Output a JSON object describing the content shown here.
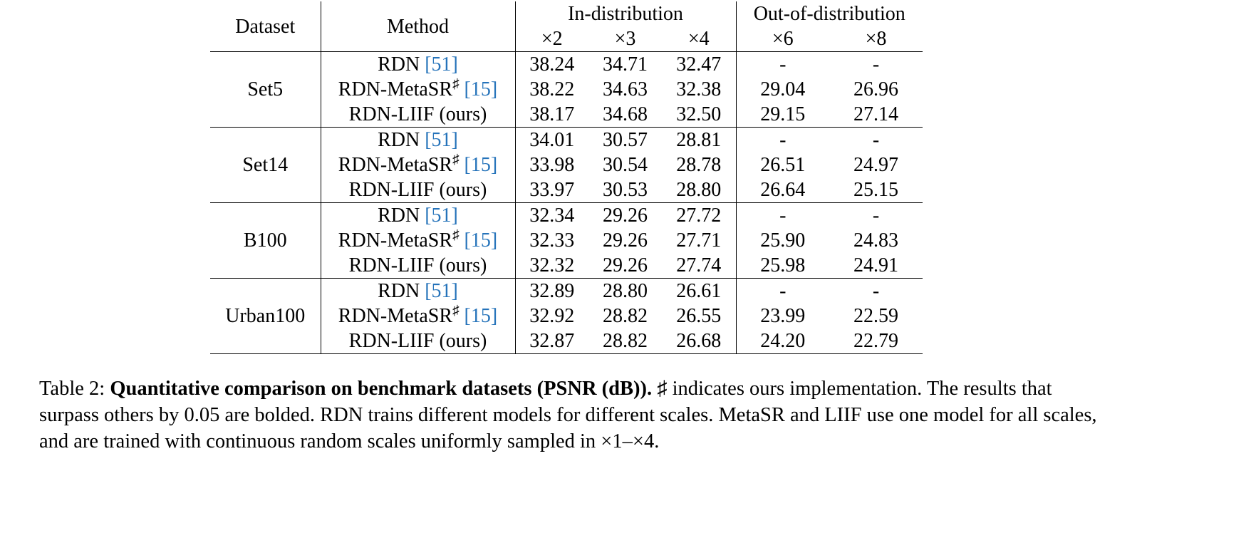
{
  "colors": {
    "citation_blue": "#2573ba",
    "text": "#000000",
    "background": "#ffffff"
  },
  "table": {
    "headers": {
      "dataset": "Dataset",
      "method": "Method",
      "in_distribution": "In-distribution",
      "out_of_distribution": "Out-of-distribution",
      "scales": [
        "×2",
        "×3",
        "×4",
        "×6",
        "×8"
      ]
    },
    "groups": [
      {
        "dataset": "Set5",
        "rows": [
          {
            "method": {
              "name": "RDN",
              "sup": "",
              "cite": "[51]"
            },
            "values": [
              "38.24",
              "34.71",
              "32.47",
              "-",
              "-"
            ],
            "bold": [
              false,
              false,
              false,
              false,
              false
            ]
          },
          {
            "method": {
              "name": "RDN-MetaSR",
              "sup": "♯",
              "cite": "[15]"
            },
            "values": [
              "38.22",
              "34.63",
              "32.38",
              "29.04",
              "26.96"
            ],
            "bold": [
              false,
              false,
              false,
              false,
              false
            ]
          },
          {
            "method": {
              "name": "RDN-LIIF (ours)",
              "sup": "",
              "cite": ""
            },
            "values": [
              "38.17",
              "34.68",
              "32.50",
              "29.15",
              "27.14"
            ],
            "bold": [
              false,
              false,
              false,
              true,
              true
            ]
          }
        ]
      },
      {
        "dataset": "Set14",
        "rows": [
          {
            "method": {
              "name": "RDN",
              "sup": "",
              "cite": "[51]"
            },
            "values": [
              "34.01",
              "30.57",
              "28.81",
              "-",
              "-"
            ],
            "bold": [
              false,
              false,
              false,
              false,
              false
            ]
          },
          {
            "method": {
              "name": "RDN-MetaSR",
              "sup": "♯",
              "cite": "[15]"
            },
            "values": [
              "33.98",
              "30.54",
              "28.78",
              "26.51",
              "24.97"
            ],
            "bold": [
              false,
              false,
              false,
              false,
              false
            ]
          },
          {
            "method": {
              "name": "RDN-LIIF (ours)",
              "sup": "",
              "cite": ""
            },
            "values": [
              "33.97",
              "30.53",
              "28.80",
              "26.64",
              "25.15"
            ],
            "bold": [
              false,
              false,
              false,
              true,
              true
            ]
          }
        ]
      },
      {
        "dataset": "B100",
        "rows": [
          {
            "method": {
              "name": "RDN",
              "sup": "",
              "cite": "[51]"
            },
            "values": [
              "32.34",
              "29.26",
              "27.72",
              "-",
              "-"
            ],
            "bold": [
              false,
              false,
              false,
              false,
              false
            ]
          },
          {
            "method": {
              "name": "RDN-MetaSR",
              "sup": "♯",
              "cite": "[15]"
            },
            "values": [
              "32.33",
              "29.26",
              "27.71",
              "25.90",
              "24.83"
            ],
            "bold": [
              false,
              false,
              false,
              false,
              false
            ]
          },
          {
            "method": {
              "name": "RDN-LIIF (ours)",
              "sup": "",
              "cite": ""
            },
            "values": [
              "32.32",
              "29.26",
              "27.74",
              "25.98",
              "24.91"
            ],
            "bold": [
              false,
              false,
              false,
              true,
              true
            ]
          }
        ]
      },
      {
        "dataset": "Urban100",
        "rows": [
          {
            "method": {
              "name": "RDN",
              "sup": "",
              "cite": "[51]"
            },
            "values": [
              "32.89",
              "28.80",
              "26.61",
              "-",
              "-"
            ],
            "bold": [
              false,
              false,
              false,
              false,
              false
            ]
          },
          {
            "method": {
              "name": "RDN-MetaSR",
              "sup": "♯",
              "cite": "[15]"
            },
            "values": [
              "32.92",
              "28.82",
              "26.55",
              "23.99",
              "22.59"
            ],
            "bold": [
              false,
              false,
              false,
              false,
              false
            ]
          },
          {
            "method": {
              "name": "RDN-LIIF (ours)",
              "sup": "",
              "cite": ""
            },
            "values": [
              "32.87",
              "28.82",
              "26.68",
              "24.20",
              "22.79"
            ],
            "bold": [
              false,
              false,
              true,
              true,
              true
            ]
          }
        ]
      }
    ]
  },
  "caption": {
    "label": "Table 2: ",
    "bold": "Quantitative comparison on benchmark datasets (PSNR (dB)).",
    "rest": " ♯ indicates ours implementation. The results that surpass others by 0.05 are bolded. RDN trains different models for different scales. MetaSR and LIIF use one model for all scales, and are trained with continuous random scales uniformly sampled in ×1–×4."
  },
  "chart_data": {
    "type": "table",
    "title": "Table 2: Quantitative comparison on benchmark datasets (PSNR (dB))",
    "columns": [
      "Dataset",
      "Method",
      "×2",
      "×3",
      "×4",
      "×6",
      "×8"
    ],
    "column_groups": {
      "In-distribution": [
        "×2",
        "×3",
        "×4"
      ],
      "Out-of-distribution": [
        "×6",
        "×8"
      ]
    },
    "rows": [
      [
        "Set5",
        "RDN [51]",
        38.24,
        34.71,
        32.47,
        "-",
        "-"
      ],
      [
        "Set5",
        "RDN-MetaSR♯ [15]",
        38.22,
        34.63,
        32.38,
        29.04,
        26.96
      ],
      [
        "Set5",
        "RDN-LIIF (ours)",
        38.17,
        34.68,
        32.5,
        29.15,
        27.14
      ],
      [
        "Set14",
        "RDN [51]",
        34.01,
        30.57,
        28.81,
        "-",
        "-"
      ],
      [
        "Set14",
        "RDN-MetaSR♯ [15]",
        33.98,
        30.54,
        28.78,
        26.51,
        24.97
      ],
      [
        "Set14",
        "RDN-LIIF (ours)",
        33.97,
        30.53,
        28.8,
        26.64,
        25.15
      ],
      [
        "B100",
        "RDN [51]",
        32.34,
        29.26,
        27.72,
        "-",
        "-"
      ],
      [
        "B100",
        "RDN-MetaSR♯ [15]",
        32.33,
        29.26,
        27.71,
        25.9,
        24.83
      ],
      [
        "B100",
        "RDN-LIIF (ours)",
        32.32,
        29.26,
        27.74,
        25.98,
        24.91
      ],
      [
        "Urban100",
        "RDN [51]",
        32.89,
        28.8,
        26.61,
        "-",
        "-"
      ],
      [
        "Urban100",
        "RDN-MetaSR♯ [15]",
        32.92,
        28.82,
        26.55,
        23.99,
        22.59
      ],
      [
        "Urban100",
        "RDN-LIIF (ours)",
        32.87,
        28.82,
        26.68,
        24.2,
        22.79
      ]
    ]
  }
}
